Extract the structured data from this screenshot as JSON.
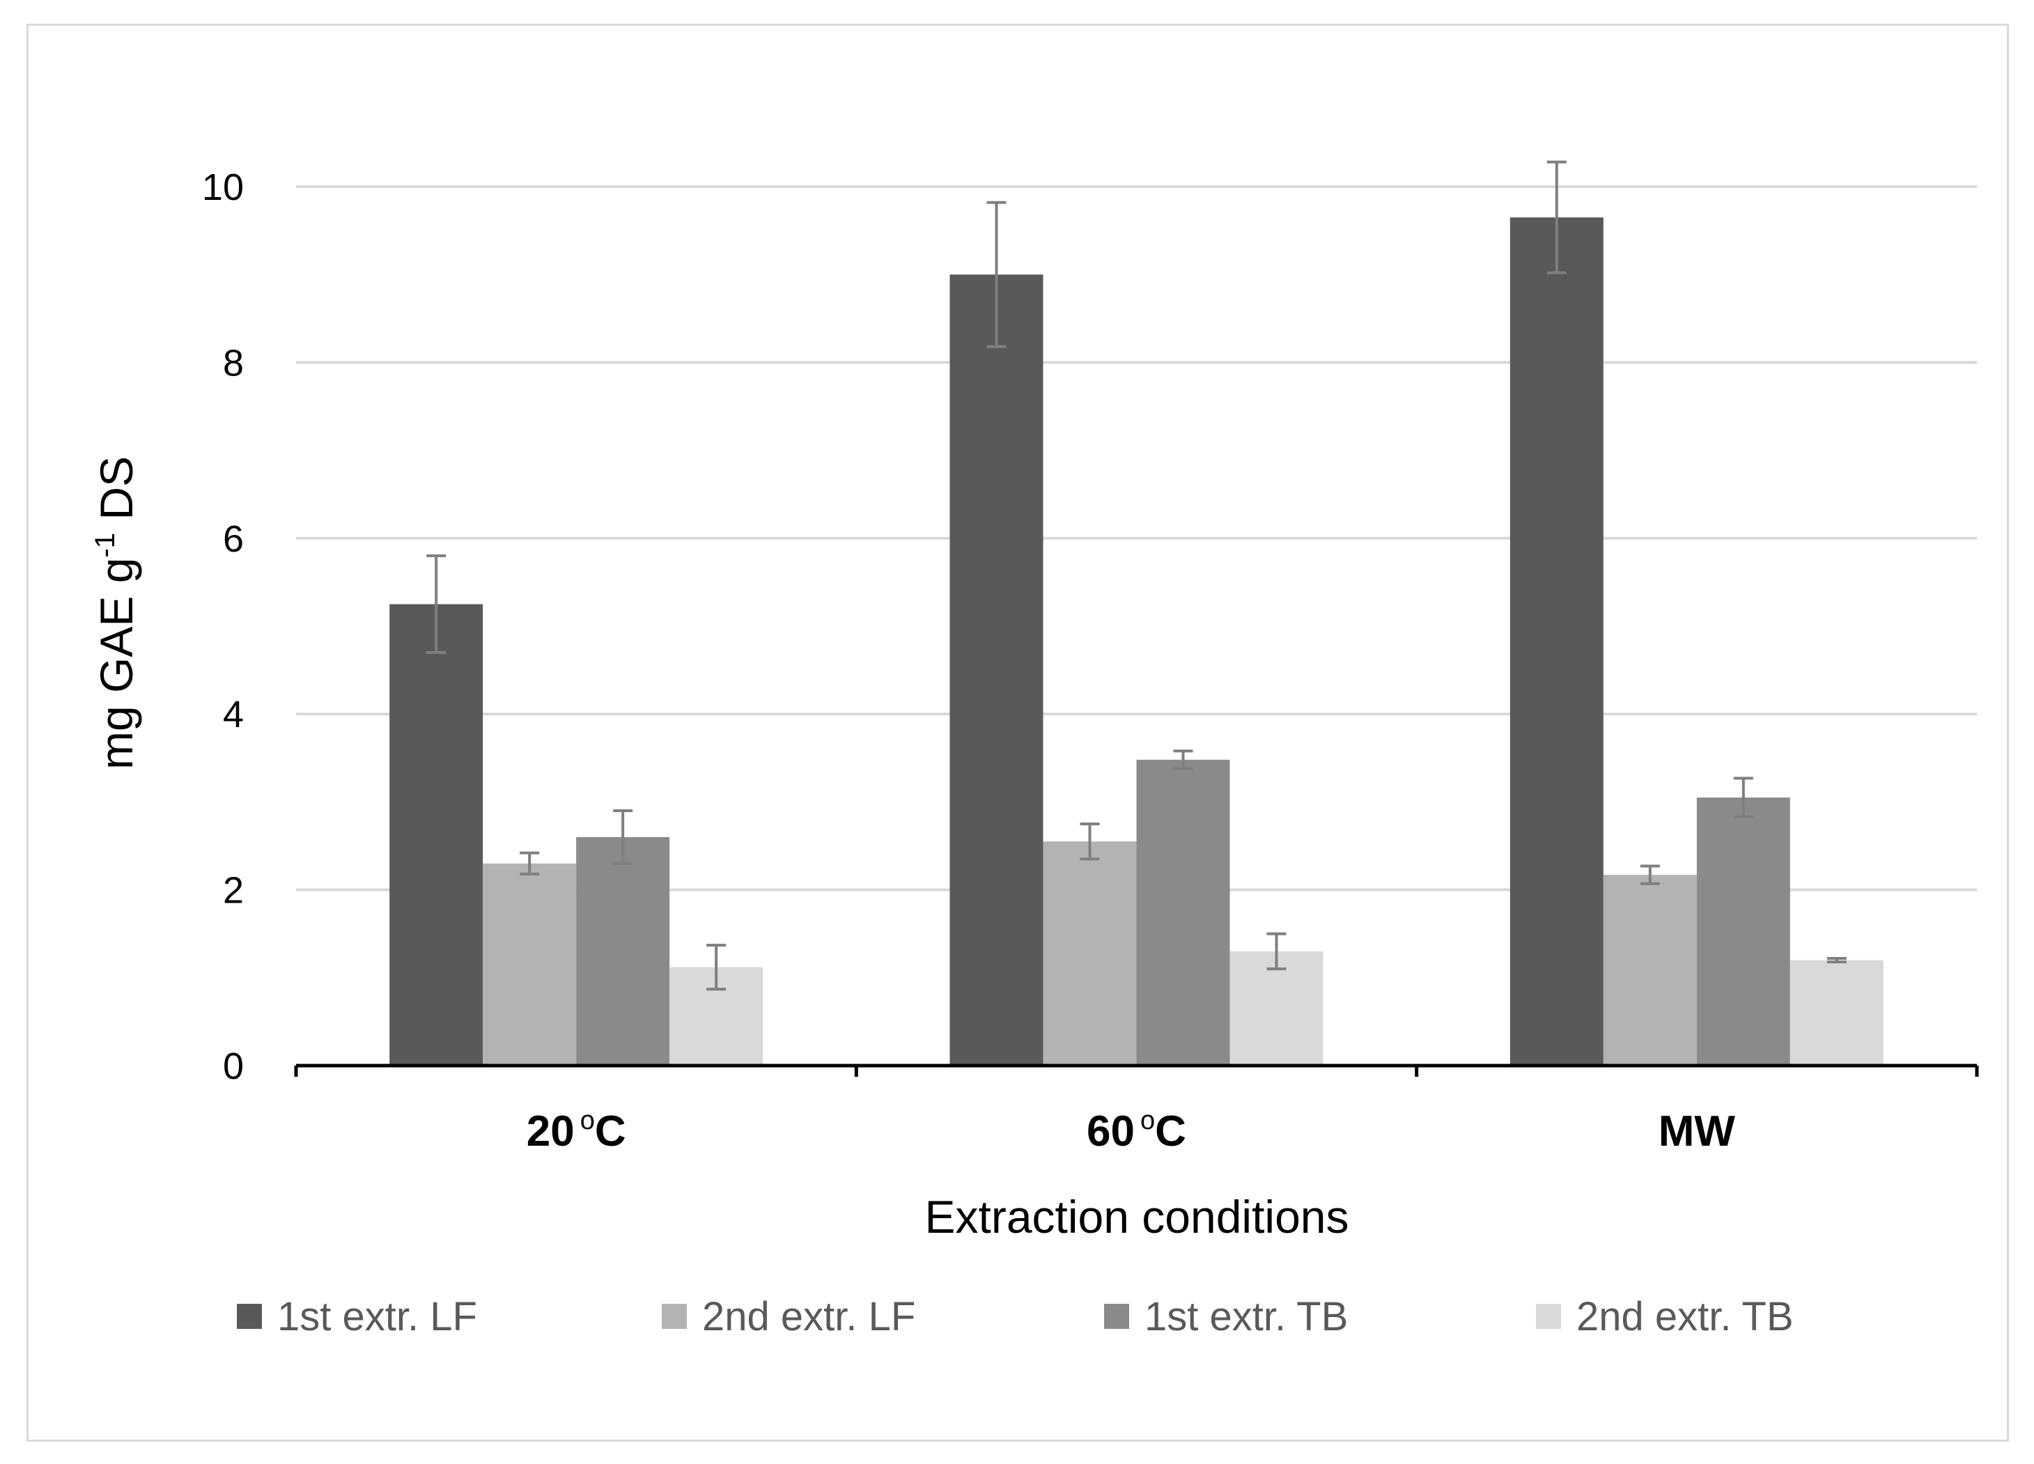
{
  "chart_data": {
    "type": "bar",
    "title": "",
    "categories": [
      "20",
      "60",
      "MW"
    ],
    "category_display": [
      {
        "main": "20",
        "sup": "o",
        "unit": "C"
      },
      {
        "main": "60",
        "sup": "o",
        "unit": "C"
      },
      {
        "main": "MW",
        "sup": "",
        "unit": ""
      }
    ],
    "xlabel": "Extraction conditions",
    "ylabel": {
      "prefix": "mg GAE g",
      "sup": "-1",
      "suffix": " DS"
    },
    "ylim": [
      0,
      10
    ],
    "yticks": [
      0,
      2,
      4,
      6,
      8,
      10
    ],
    "grid": true,
    "legend_position": "bottom",
    "series": [
      {
        "name": "1st extr. LF",
        "color": "#595959",
        "values": [
          5.25,
          9.0,
          9.65
        ],
        "errors": [
          0.55,
          0.82,
          0.63
        ]
      },
      {
        "name": "2nd extr. LF",
        "color": "#b3b3b3",
        "values": [
          2.3,
          2.55,
          2.17
        ],
        "errors": [
          0.12,
          0.2,
          0.1
        ]
      },
      {
        "name": "1st extr. TB",
        "color": "#8a8a8a",
        "values": [
          2.6,
          3.48,
          3.05
        ],
        "errors": [
          0.3,
          0.1,
          0.22
        ]
      },
      {
        "name": "2nd extr. TB",
        "color": "#d9d9d9",
        "values": [
          1.12,
          1.3,
          1.2
        ],
        "errors": [
          0.25,
          0.2,
          0.02
        ]
      }
    ]
  }
}
